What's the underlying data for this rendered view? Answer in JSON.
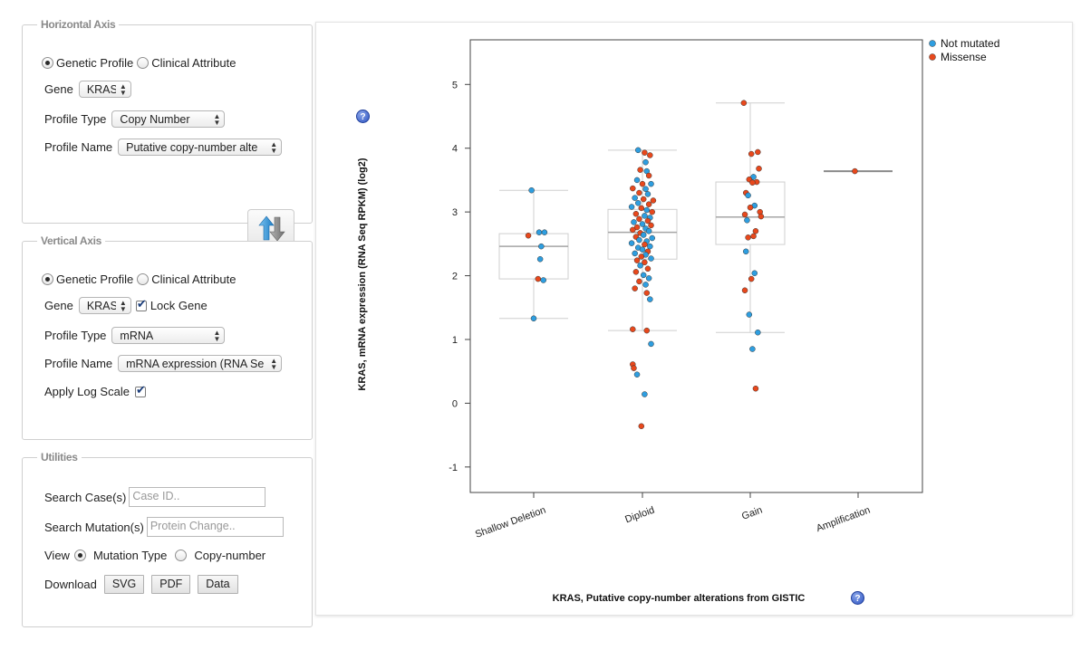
{
  "horizontal_panel": {
    "legend": "Horizontal Axis",
    "radio_genetic_profile": "Genetic Profile",
    "radio_clinical_attribute": "Clinical Attribute",
    "gene_label": "Gene",
    "gene_value": "KRAS",
    "profile_type_label": "Profile Type",
    "profile_type_value": "Copy Number",
    "profile_name_label": "Profile Name",
    "profile_name_value": "Putative copy-number alte"
  },
  "vertical_panel": {
    "legend": "Vertical Axis",
    "radio_genetic_profile": "Genetic Profile",
    "radio_clinical_attribute": "Clinical Attribute",
    "gene_label": "Gene",
    "gene_value": "KRAS",
    "lock_gene_label": "Lock Gene",
    "profile_type_label": "Profile Type",
    "profile_type_value": "mRNA",
    "profile_name_label": "Profile Name",
    "profile_name_value": "mRNA expression (RNA Se",
    "apply_log_scale_label": "Apply Log Scale"
  },
  "utilities": {
    "legend": "Utilities",
    "search_cases_label": "Search Case(s)",
    "search_cases_placeholder": "Case ID..",
    "search_mutation_label": "Search Mutation(s)",
    "search_mutation_placeholder": "Protein Change..",
    "view_label": "View",
    "view_mutation_type": "Mutation Type",
    "view_copy_number": "Copy-number",
    "download_label": "Download",
    "download_svg": "SVG",
    "download_pdf": "PDF",
    "download_data": "Data"
  },
  "help_icon_glyph": "?",
  "colors": {
    "not_mutated": "#2e9ee0",
    "missense": "#e8481c"
  },
  "chart_data": {
    "type": "scatter",
    "xlabel": "KRAS, Putative copy-number alterations from GISTIC",
    "ylabel": "KRAS, mRNA expression (RNA Seq RPKM) (log2)",
    "categories": [
      "Shallow Deletion",
      "Diploid",
      "Gain",
      "Amplification"
    ],
    "ylim": [
      -1.4,
      5.7
    ],
    "yticks": [
      "-1",
      "0",
      "1",
      "2",
      "3",
      "4",
      "5"
    ],
    "legend_position": "top-right",
    "series_names": [
      "Not mutated",
      "Missense"
    ],
    "boxes": [
      {
        "category": "Shallow Deletion",
        "whisker_low": 1.33,
        "q1": 1.95,
        "median": 2.46,
        "q3": 2.66,
        "whisker_high": 3.34
      },
      {
        "category": "Diploid",
        "whisker_low": 1.14,
        "q1": 2.26,
        "median": 2.68,
        "q3": 3.04,
        "whisker_high": 3.97
      },
      {
        "category": "Gain",
        "whisker_low": 1.11,
        "q1": 2.49,
        "median": 2.92,
        "q3": 3.47,
        "whisker_high": 4.71
      },
      {
        "category": "Amplification",
        "whisker_low": 3.64,
        "q1": 3.64,
        "median": 3.64,
        "q3": 3.64,
        "whisker_high": 3.64
      }
    ],
    "points": [
      {
        "c": 0,
        "dx": -0.02,
        "y": 3.34,
        "s": "Not mutated"
      },
      {
        "c": 0,
        "dx": 0.05,
        "y": 2.68,
        "s": "Not mutated"
      },
      {
        "c": 0,
        "dx": 0.1,
        "y": 2.68,
        "s": "Not mutated"
      },
      {
        "c": 0,
        "dx": -0.05,
        "y": 2.63,
        "s": "Missense"
      },
      {
        "c": 0,
        "dx": 0.07,
        "y": 2.46,
        "s": "Not mutated"
      },
      {
        "c": 0,
        "dx": 0.06,
        "y": 2.26,
        "s": "Not mutated"
      },
      {
        "c": 0,
        "dx": 0.04,
        "y": 1.95,
        "s": "Missense"
      },
      {
        "c": 0,
        "dx": 0.09,
        "y": 1.93,
        "s": "Not mutated"
      },
      {
        "c": 0,
        "dx": 0.0,
        "y": 1.33,
        "s": "Not mutated"
      },
      {
        "c": 1,
        "dx": -0.04,
        "y": 3.97,
        "s": "Not mutated"
      },
      {
        "c": 1,
        "dx": 0.02,
        "y": 3.93,
        "s": "Missense"
      },
      {
        "c": 1,
        "dx": 0.07,
        "y": 3.89,
        "s": "Missense"
      },
      {
        "c": 1,
        "dx": 0.03,
        "y": 3.78,
        "s": "Not mutated"
      },
      {
        "c": 1,
        "dx": -0.02,
        "y": 3.66,
        "s": "Missense"
      },
      {
        "c": 1,
        "dx": 0.04,
        "y": 3.64,
        "s": "Not mutated"
      },
      {
        "c": 1,
        "dx": 0.06,
        "y": 3.57,
        "s": "Missense"
      },
      {
        "c": 1,
        "dx": -0.05,
        "y": 3.5,
        "s": "Not mutated"
      },
      {
        "c": 1,
        "dx": 0.0,
        "y": 3.44,
        "s": "Missense"
      },
      {
        "c": 1,
        "dx": 0.08,
        "y": 3.44,
        "s": "Not mutated"
      },
      {
        "c": 1,
        "dx": -0.09,
        "y": 3.37,
        "s": "Missense"
      },
      {
        "c": 1,
        "dx": 0.03,
        "y": 3.36,
        "s": "Not mutated"
      },
      {
        "c": 1,
        "dx": -0.03,
        "y": 3.3,
        "s": "Missense"
      },
      {
        "c": 1,
        "dx": 0.05,
        "y": 3.28,
        "s": "Not mutated"
      },
      {
        "c": 1,
        "dx": -0.07,
        "y": 3.22,
        "s": "Not mutated"
      },
      {
        "c": 1,
        "dx": 0.01,
        "y": 3.2,
        "s": "Missense"
      },
      {
        "c": 1,
        "dx": 0.1,
        "y": 3.18,
        "s": "Missense"
      },
      {
        "c": 1,
        "dx": -0.04,
        "y": 3.14,
        "s": "Not mutated"
      },
      {
        "c": 1,
        "dx": 0.06,
        "y": 3.12,
        "s": "Missense"
      },
      {
        "c": 1,
        "dx": -0.1,
        "y": 3.08,
        "s": "Not mutated"
      },
      {
        "c": 1,
        "dx": -0.01,
        "y": 3.06,
        "s": "Missense"
      },
      {
        "c": 1,
        "dx": 0.04,
        "y": 3.03,
        "s": "Not mutated"
      },
      {
        "c": 1,
        "dx": 0.09,
        "y": 3.0,
        "s": "Missense"
      },
      {
        "c": 1,
        "dx": -0.06,
        "y": 2.97,
        "s": "Missense"
      },
      {
        "c": 1,
        "dx": 0.02,
        "y": 2.94,
        "s": "Not mutated"
      },
      {
        "c": 1,
        "dx": 0.07,
        "y": 2.91,
        "s": "Not mutated"
      },
      {
        "c": 1,
        "dx": -0.03,
        "y": 2.89,
        "s": "Missense"
      },
      {
        "c": 1,
        "dx": 0.05,
        "y": 2.86,
        "s": "Missense"
      },
      {
        "c": 1,
        "dx": -0.08,
        "y": 2.84,
        "s": "Not mutated"
      },
      {
        "c": 1,
        "dx": 0.0,
        "y": 2.81,
        "s": "Not mutated"
      },
      {
        "c": 1,
        "dx": 0.08,
        "y": 2.79,
        "s": "Missense"
      },
      {
        "c": 1,
        "dx": -0.05,
        "y": 2.76,
        "s": "Missense"
      },
      {
        "c": 1,
        "dx": 0.03,
        "y": 2.74,
        "s": "Not mutated"
      },
      {
        "c": 1,
        "dx": -0.09,
        "y": 2.72,
        "s": "Missense"
      },
      {
        "c": 1,
        "dx": 0.06,
        "y": 2.7,
        "s": "Not mutated"
      },
      {
        "c": 1,
        "dx": -0.02,
        "y": 2.67,
        "s": "Missense"
      },
      {
        "c": 1,
        "dx": 0.01,
        "y": 2.64,
        "s": "Not mutated"
      },
      {
        "c": 1,
        "dx": -0.06,
        "y": 2.61,
        "s": "Missense"
      },
      {
        "c": 1,
        "dx": 0.09,
        "y": 2.59,
        "s": "Not mutated"
      },
      {
        "c": 1,
        "dx": -0.03,
        "y": 2.56,
        "s": "Not mutated"
      },
      {
        "c": 1,
        "dx": 0.04,
        "y": 2.54,
        "s": "Not mutated"
      },
      {
        "c": 1,
        "dx": -0.1,
        "y": 2.51,
        "s": "Not mutated"
      },
      {
        "c": 1,
        "dx": 0.02,
        "y": 2.49,
        "s": "Missense"
      },
      {
        "c": 1,
        "dx": 0.07,
        "y": 2.46,
        "s": "Not mutated"
      },
      {
        "c": 1,
        "dx": -0.04,
        "y": 2.44,
        "s": "Not mutated"
      },
      {
        "c": 1,
        "dx": 0.0,
        "y": 2.41,
        "s": "Not mutated"
      },
      {
        "c": 1,
        "dx": 0.05,
        "y": 2.38,
        "s": "Missense"
      },
      {
        "c": 1,
        "dx": -0.07,
        "y": 2.35,
        "s": "Not mutated"
      },
      {
        "c": 1,
        "dx": 0.03,
        "y": 2.33,
        "s": "Not mutated"
      },
      {
        "c": 1,
        "dx": -0.01,
        "y": 2.3,
        "s": "Missense"
      },
      {
        "c": 1,
        "dx": 0.08,
        "y": 2.27,
        "s": "Not mutated"
      },
      {
        "c": 1,
        "dx": -0.05,
        "y": 2.24,
        "s": "Missense"
      },
      {
        "c": 1,
        "dx": 0.02,
        "y": 2.21,
        "s": "Missense"
      },
      {
        "c": 1,
        "dx": -0.02,
        "y": 2.16,
        "s": "Not mutated"
      },
      {
        "c": 1,
        "dx": 0.05,
        "y": 2.11,
        "s": "Missense"
      },
      {
        "c": 1,
        "dx": -0.06,
        "y": 2.06,
        "s": "Missense"
      },
      {
        "c": 1,
        "dx": 0.01,
        "y": 2.01,
        "s": "Not mutated"
      },
      {
        "c": 1,
        "dx": 0.06,
        "y": 1.96,
        "s": "Not mutated"
      },
      {
        "c": 1,
        "dx": -0.03,
        "y": 1.91,
        "s": "Missense"
      },
      {
        "c": 1,
        "dx": 0.03,
        "y": 1.86,
        "s": "Not mutated"
      },
      {
        "c": 1,
        "dx": -0.07,
        "y": 1.8,
        "s": "Missense"
      },
      {
        "c": 1,
        "dx": 0.04,
        "y": 1.73,
        "s": "Missense"
      },
      {
        "c": 1,
        "dx": 0.07,
        "y": 1.63,
        "s": "Not mutated"
      },
      {
        "c": 1,
        "dx": -0.09,
        "y": 1.16,
        "s": "Missense"
      },
      {
        "c": 1,
        "dx": 0.04,
        "y": 1.14,
        "s": "Missense"
      },
      {
        "c": 1,
        "dx": 0.08,
        "y": 0.93,
        "s": "Not mutated"
      },
      {
        "c": 1,
        "dx": -0.09,
        "y": 0.61,
        "s": "Missense"
      },
      {
        "c": 1,
        "dx": -0.08,
        "y": 0.55,
        "s": "Missense"
      },
      {
        "c": 1,
        "dx": -0.05,
        "y": 0.45,
        "s": "Not mutated"
      },
      {
        "c": 1,
        "dx": 0.02,
        "y": 0.14,
        "s": "Not mutated"
      },
      {
        "c": 1,
        "dx": -0.01,
        "y": -0.36,
        "s": "Missense"
      },
      {
        "c": 2,
        "dx": -0.06,
        "y": 4.71,
        "s": "Missense"
      },
      {
        "c": 2,
        "dx": 0.07,
        "y": 3.94,
        "s": "Missense"
      },
      {
        "c": 2,
        "dx": 0.01,
        "y": 3.91,
        "s": "Missense"
      },
      {
        "c": 2,
        "dx": 0.08,
        "y": 3.68,
        "s": "Missense"
      },
      {
        "c": 2,
        "dx": 0.03,
        "y": 3.55,
        "s": "Not mutated"
      },
      {
        "c": 2,
        "dx": -0.01,
        "y": 3.51,
        "s": "Missense"
      },
      {
        "c": 2,
        "dx": 0.06,
        "y": 3.47,
        "s": "Missense"
      },
      {
        "c": 2,
        "dx": 0.02,
        "y": 3.46,
        "s": "Missense"
      },
      {
        "c": 2,
        "dx": -0.04,
        "y": 3.3,
        "s": "Missense"
      },
      {
        "c": 2,
        "dx": -0.02,
        "y": 3.26,
        "s": "Not mutated"
      },
      {
        "c": 2,
        "dx": 0.04,
        "y": 3.1,
        "s": "Not mutated"
      },
      {
        "c": 2,
        "dx": 0.0,
        "y": 3.07,
        "s": "Missense"
      },
      {
        "c": 2,
        "dx": 0.09,
        "y": 3.0,
        "s": "Missense"
      },
      {
        "c": 2,
        "dx": -0.05,
        "y": 2.96,
        "s": "Missense"
      },
      {
        "c": 2,
        "dx": 0.1,
        "y": 2.93,
        "s": "Missense"
      },
      {
        "c": 2,
        "dx": -0.03,
        "y": 2.87,
        "s": "Not mutated"
      },
      {
        "c": 2,
        "dx": 0.05,
        "y": 2.7,
        "s": "Missense"
      },
      {
        "c": 2,
        "dx": 0.03,
        "y": 2.62,
        "s": "Missense"
      },
      {
        "c": 2,
        "dx": -0.02,
        "y": 2.6,
        "s": "Missense"
      },
      {
        "c": 2,
        "dx": -0.04,
        "y": 2.38,
        "s": "Not mutated"
      },
      {
        "c": 2,
        "dx": 0.04,
        "y": 2.04,
        "s": "Not mutated"
      },
      {
        "c": 2,
        "dx": 0.01,
        "y": 1.95,
        "s": "Missense"
      },
      {
        "c": 2,
        "dx": -0.05,
        "y": 1.77,
        "s": "Missense"
      },
      {
        "c": 2,
        "dx": -0.01,
        "y": 1.39,
        "s": "Not mutated"
      },
      {
        "c": 2,
        "dx": 0.07,
        "y": 1.11,
        "s": "Not mutated"
      },
      {
        "c": 2,
        "dx": 0.02,
        "y": 0.85,
        "s": "Not mutated"
      },
      {
        "c": 2,
        "dx": 0.05,
        "y": 0.23,
        "s": "Missense"
      },
      {
        "c": 3,
        "dx": -0.03,
        "y": 3.64,
        "s": "Missense"
      }
    ]
  }
}
